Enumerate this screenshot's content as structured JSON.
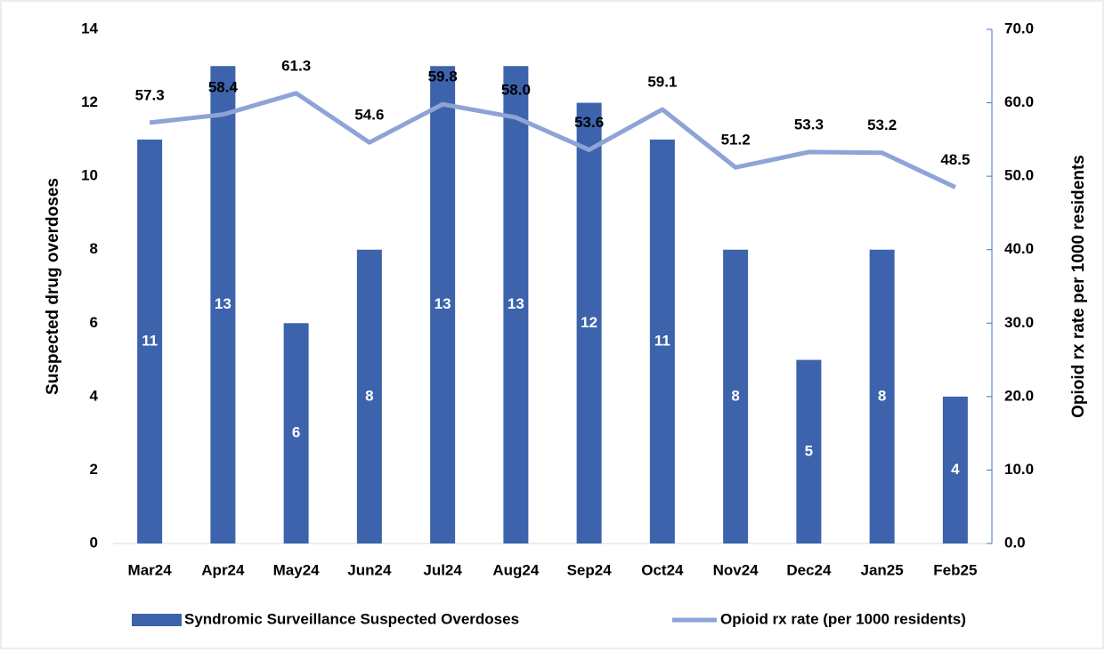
{
  "chart_data": {
    "type": "combo",
    "y_label": "Suspected drug overdoses",
    "y2_label": "Opioid rx rate per 1000 residents",
    "categories": [
      "Mar24",
      "Apr24",
      "May24",
      "Jun24",
      "Jul24",
      "Aug24",
      "Sep24",
      "Oct24",
      "Nov24",
      "Dec24",
      "Jan25",
      "Feb25"
    ],
    "ylim": [
      0,
      14
    ],
    "yticks": [
      0,
      2,
      4,
      6,
      8,
      10,
      12,
      14
    ],
    "y2lim": [
      0,
      70
    ],
    "y2ticks": [
      {
        "value": 0,
        "label": "0.0"
      },
      {
        "value": 10,
        "label": "10.0"
      },
      {
        "value": 20,
        "label": "20.0"
      },
      {
        "value": 30,
        "label": "30.0"
      },
      {
        "value": 40,
        "label": "40.0"
      },
      {
        "value": 50,
        "label": "50.0"
      },
      {
        "value": 60,
        "label": "60.0"
      },
      {
        "value": 70,
        "label": "70.0"
      }
    ],
    "legend": "bottom",
    "series": [
      {
        "name": "Syndromic Surveillance Suspected Overdoses",
        "type": "bar",
        "color": "#3c63ac",
        "values": [
          11,
          13,
          6,
          8,
          13,
          13,
          12,
          11,
          8,
          5,
          8,
          4
        ]
      },
      {
        "name": "Opioid rx rate (per 1000 residents)",
        "type": "line",
        "axis": "y2",
        "color": "#8ea3d6",
        "values": [
          57.3,
          58.4,
          61.3,
          54.6,
          59.8,
          58.0,
          53.6,
          59.1,
          51.2,
          53.3,
          53.2,
          48.5
        ],
        "value_labels": [
          "57.3",
          "58.4",
          "61.3",
          "54.6",
          "59.8",
          "58.0",
          "53.6",
          "59.1",
          "51.2",
          "53.3",
          "53.2",
          "48.5"
        ]
      }
    ]
  }
}
